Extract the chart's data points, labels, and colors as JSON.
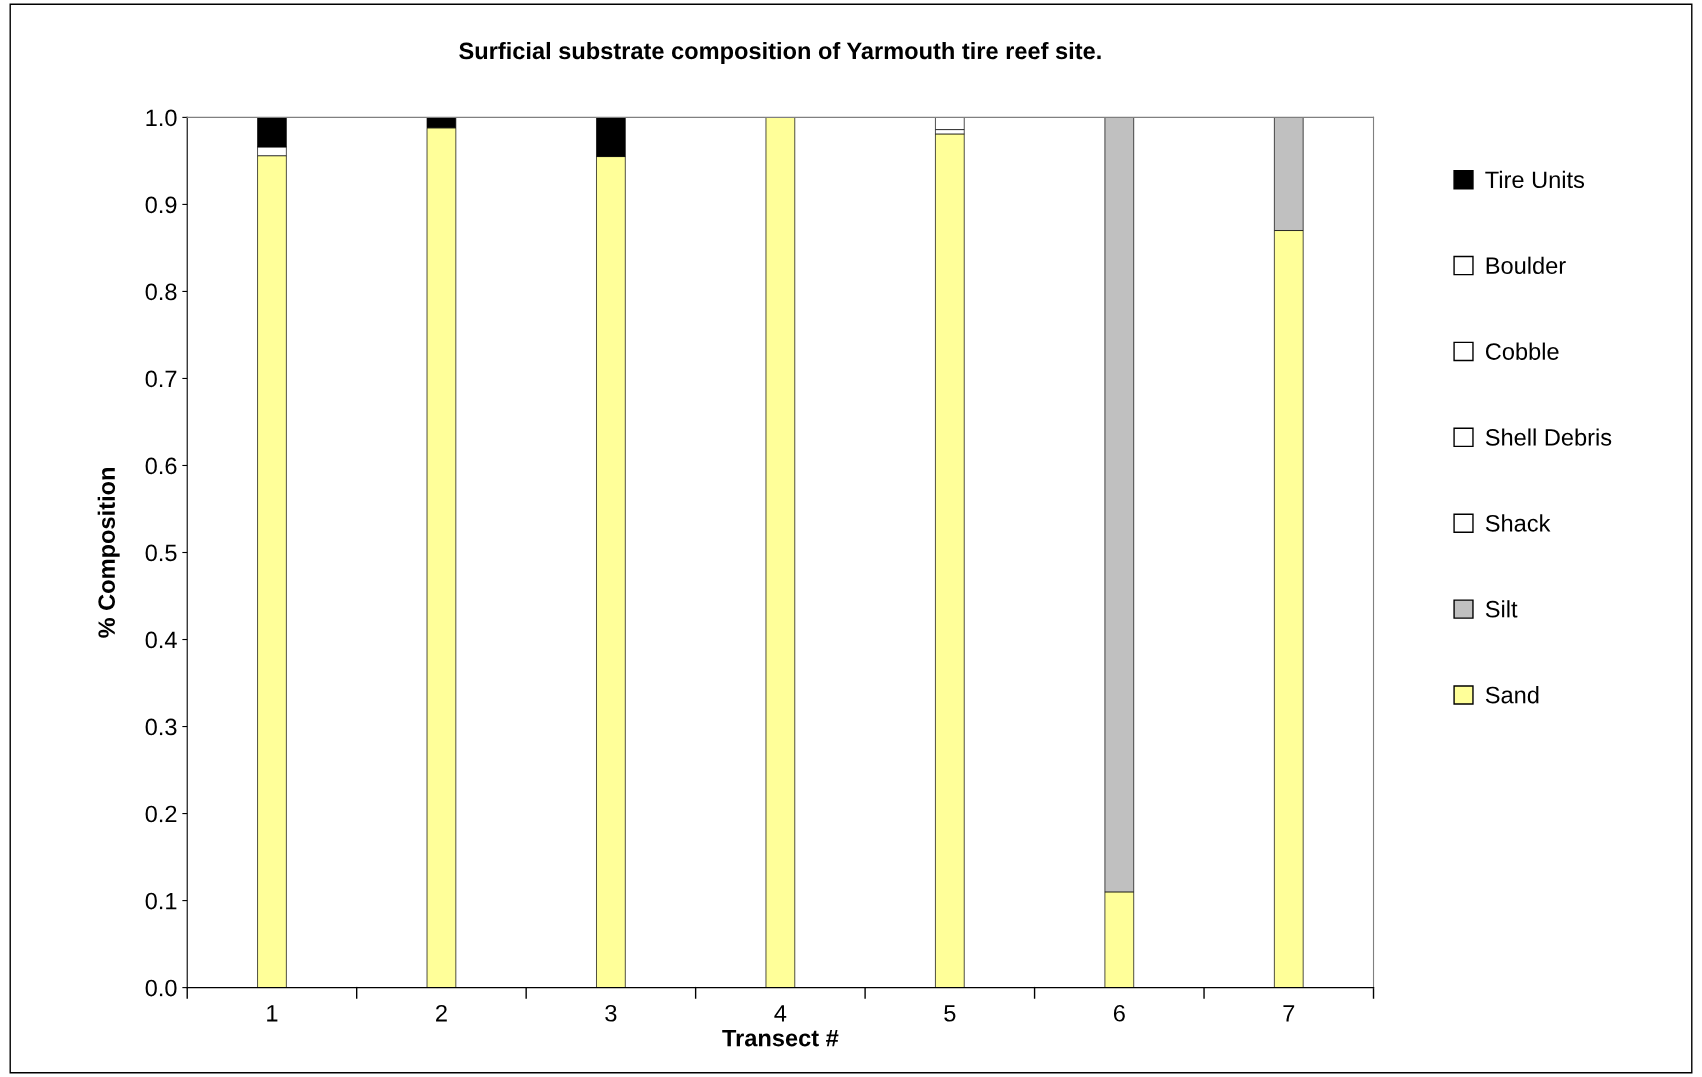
{
  "chart_data": {
    "type": "bar",
    "title": "Surficial substrate composition of Yarmouth tire reef site.",
    "xlabel": "Transect #",
    "ylabel": "% Composition",
    "categories": [
      "1",
      "2",
      "3",
      "4",
      "5",
      "6",
      "7"
    ],
    "stacked": true,
    "ylim": [
      0,
      1.0
    ],
    "yticks": [
      {
        "value": 0,
        "label": "0.0"
      },
      0.1,
      0.2,
      0.3,
      0.4,
      0.5,
      0.6,
      0.7,
      0.8,
      0.9,
      {
        "value": 1.0,
        "label": "1.0"
      }
    ],
    "grid": false,
    "legend": "right",
    "series": [
      {
        "name": "Sand",
        "color": "#ffff99",
        "values": [
          0.956,
          0.988,
          0.955,
          1.0,
          0.981,
          0.11,
          0.87
        ]
      },
      {
        "name": "Silt",
        "color": "#c0c0c0",
        "values": [
          0,
          0,
          0,
          0,
          0,
          0.89,
          0.13
        ]
      },
      {
        "name": "Shack",
        "color": "#ffffff",
        "values": [
          0,
          0,
          0,
          0,
          0.005,
          0,
          0
        ]
      },
      {
        "name": "Shell Debris",
        "color": "#ffffff",
        "values": [
          0.01,
          0,
          0,
          0,
          0.014,
          0,
          0
        ]
      },
      {
        "name": "Cobble",
        "color": "#ffffff",
        "values": [
          0,
          0,
          0,
          0,
          0,
          0,
          0
        ]
      },
      {
        "name": "Boulder",
        "color": "#ffffff",
        "values": [
          0,
          0,
          0,
          0,
          0,
          0,
          0
        ]
      },
      {
        "name": "Tire Units",
        "color": "#000000",
        "values": [
          0.034,
          0.012,
          0.045,
          0,
          0,
          0,
          0
        ]
      }
    ]
  }
}
